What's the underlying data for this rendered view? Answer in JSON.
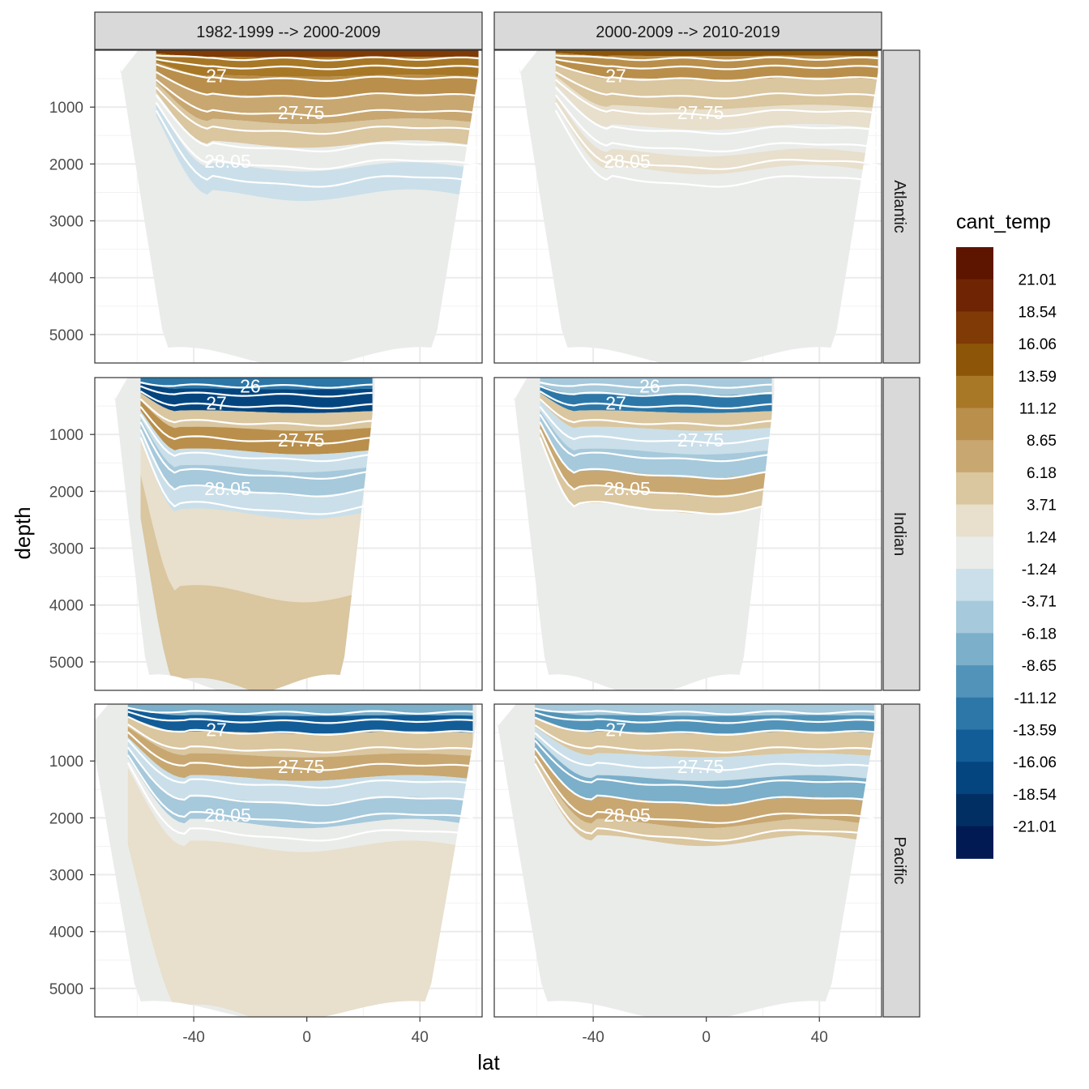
{
  "chart_data": {
    "type": "heatmap",
    "subtype": "faceted-ocean-section-contour",
    "xlabel": "lat",
    "ylabel": "depth",
    "x_ticks": [
      -40,
      0,
      40
    ],
    "xlim": [
      -75,
      62
    ],
    "y_ticks": [
      1000,
      2000,
      3000,
      4000,
      5000
    ],
    "ylim": [
      0,
      5500
    ],
    "y_reversed": true,
    "column_facets": [
      "1982-1999 --> 2000-2009",
      "2000-2009 --> 2010-2019"
    ],
    "row_facets": [
      "Atlantic",
      "Indian",
      "Pacific"
    ],
    "legend": {
      "title": "cant_temp",
      "labels": [
        "21.01",
        "18.54",
        "16.06",
        "13.59",
        "11.12",
        "8.65",
        "6.18",
        "3.71",
        "1.24",
        "-1.24",
        "-3.71",
        "-6.18",
        "-8.65",
        "-11.12",
        "-13.59",
        "-16.06",
        "-18.54",
        "-21.01"
      ],
      "colors": [
        "#5e1500",
        "#6f2503",
        "#7f3a05",
        "#8c5508",
        "#a87827",
        "#b98f4b",
        "#c8a771",
        "#dac69f",
        "#e8dfcc",
        "#eaecea",
        "#cadfe9",
        "#a6c9db",
        "#7bafca",
        "#5294b9",
        "#2c77a8",
        "#125d98",
        "#05457f",
        "#022f63",
        "#011a54"
      ]
    },
    "isopycnal_labels": [
      "26",
      "27",
      "27.75",
      "28.05"
    ],
    "panels": [
      {
        "column": 0,
        "row": "Atlantic",
        "basin_lat_range": [
          -66,
          61
        ],
        "contour_labels": [
          "27",
          "27.75",
          "28.05"
        ],
        "layers": [
          {
            "d_top": 0,
            "d_bot": 120,
            "value": 16.06
          },
          {
            "d_top": 120,
            "d_bot": 450,
            "value": 11.12
          },
          {
            "d_top": 450,
            "d_bot": 800,
            "value": 8.65
          },
          {
            "d_top": 800,
            "d_bot": 1250,
            "value": 6.18
          },
          {
            "d_top": 1250,
            "d_bot": 1650,
            "value": 3.71
          },
          {
            "d_top": 1650,
            "d_bot": 2050,
            "value": -1.24
          },
          {
            "d_top": 2050,
            "d_bot": 2550,
            "value": -3.71
          },
          {
            "d_top": 2550,
            "d_bot": 4200,
            "value": -1.24
          }
        ]
      },
      {
        "column": 1,
        "row": "Atlantic",
        "basin_lat_range": [
          -66,
          61
        ],
        "contour_labels": [
          "27",
          "27.75",
          "28.05"
        ],
        "layers": [
          {
            "d_top": 0,
            "d_bot": 100,
            "value": 13.59
          },
          {
            "d_top": 100,
            "d_bot": 500,
            "value": 8.65
          },
          {
            "d_top": 500,
            "d_bot": 1000,
            "value": 3.71
          },
          {
            "d_top": 1000,
            "d_bot": 1350,
            "value": 1.24
          },
          {
            "d_top": 1350,
            "d_bot": 1800,
            "value": -1.24
          },
          {
            "d_top": 1800,
            "d_bot": 2100,
            "value": 1.24
          },
          {
            "d_top": 2100,
            "d_bot": 2500,
            "value": -1.24
          }
        ]
      },
      {
        "column": 0,
        "row": "Indian",
        "basin_lat_range": [
          -68,
          24
        ],
        "contour_labels": [
          "26",
          "27",
          "27.75",
          "28.05"
        ],
        "layers": [
          {
            "d_top": 0,
            "d_bot": 200,
            "value": -13.59
          },
          {
            "d_top": 200,
            "d_bot": 600,
            "value": -18.54
          },
          {
            "d_top": 600,
            "d_bot": 900,
            "value": 3.71
          },
          {
            "d_top": 900,
            "d_bot": 1300,
            "value": 8.65
          },
          {
            "d_top": 1300,
            "d_bot": 1600,
            "value": -3.71
          },
          {
            "d_top": 1600,
            "d_bot": 2000,
            "value": -6.18
          },
          {
            "d_top": 2000,
            "d_bot": 2400,
            "value": -3.71
          },
          {
            "d_top": 2400,
            "d_bot": 5500,
            "value": 1.24
          },
          {
            "d_top": 3800,
            "d_bot": 5500,
            "value": 3.71
          }
        ]
      },
      {
        "column": 1,
        "row": "Indian",
        "basin_lat_range": [
          -68,
          24
        ],
        "contour_labels": [
          "26",
          "27",
          "27.75",
          "28.05"
        ],
        "layers": [
          {
            "d_top": 0,
            "d_bot": 300,
            "value": -6.18
          },
          {
            "d_top": 300,
            "d_bot": 600,
            "value": -13.59
          },
          {
            "d_top": 600,
            "d_bot": 900,
            "value": 3.71
          },
          {
            "d_top": 900,
            "d_bot": 1300,
            "value": -3.71
          },
          {
            "d_top": 1300,
            "d_bot": 1700,
            "value": -6.18
          },
          {
            "d_top": 1700,
            "d_bot": 2000,
            "value": 6.18
          },
          {
            "d_top": 2000,
            "d_bot": 2300,
            "value": 3.71
          }
        ]
      },
      {
        "column": 0,
        "row": "Pacific",
        "basin_lat_range": [
          -77,
          60
        ],
        "contour_labels": [
          "27",
          "27.75",
          "28.05"
        ],
        "layers": [
          {
            "d_top": 0,
            "d_bot": 200,
            "value": -8.65
          },
          {
            "d_top": 200,
            "d_bot": 500,
            "value": -16.06
          },
          {
            "d_top": 500,
            "d_bot": 900,
            "value": 3.71
          },
          {
            "d_top": 900,
            "d_bot": 1300,
            "value": 6.18
          },
          {
            "d_top": 1300,
            "d_bot": 1700,
            "value": -3.71
          },
          {
            "d_top": 1700,
            "d_bot": 2100,
            "value": -6.18
          },
          {
            "d_top": 2100,
            "d_bot": 2500,
            "value": -1.24
          },
          {
            "d_top": 2500,
            "d_bot": 5500,
            "value": 1.24
          }
        ]
      },
      {
        "column": 1,
        "row": "Pacific",
        "basin_lat_range": [
          -74,
          60
        ],
        "contour_labels": [
          "27",
          "27.75",
          "28.05"
        ],
        "layers": [
          {
            "d_top": 0,
            "d_bot": 200,
            "value": -6.18
          },
          {
            "d_top": 200,
            "d_bot": 500,
            "value": -11.12
          },
          {
            "d_top": 500,
            "d_bot": 900,
            "value": 3.71
          },
          {
            "d_top": 900,
            "d_bot": 1300,
            "value": -3.71
          },
          {
            "d_top": 1300,
            "d_bot": 1700,
            "value": -8.65
          },
          {
            "d_top": 1700,
            "d_bot": 2100,
            "value": 6.18
          },
          {
            "d_top": 2100,
            "d_bot": 2400,
            "value": 3.71
          }
        ]
      }
    ]
  }
}
